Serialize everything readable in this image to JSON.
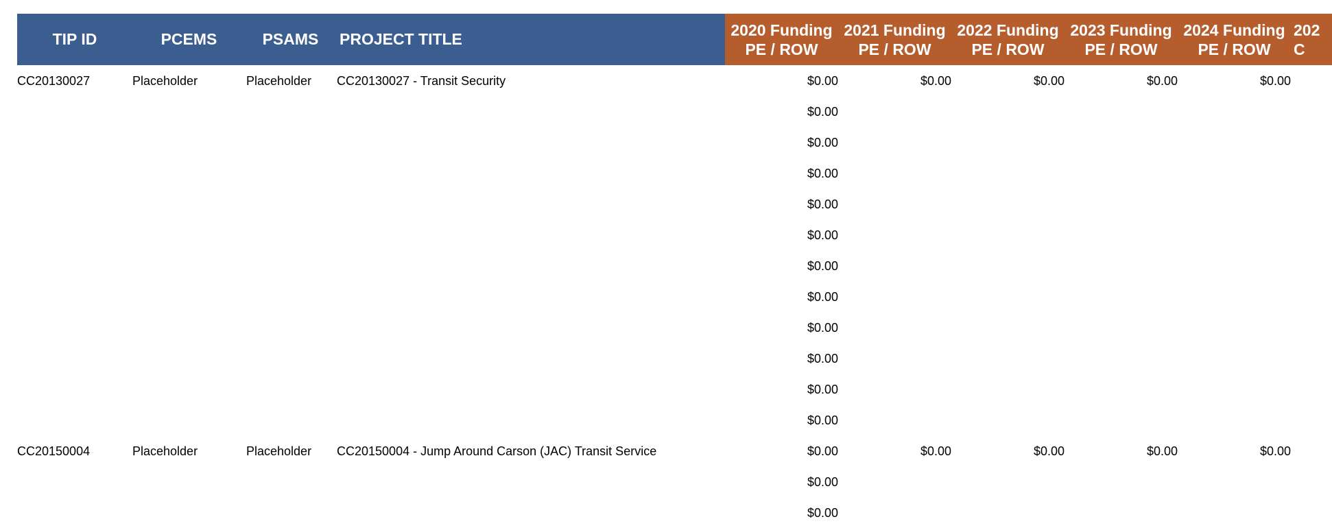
{
  "headers": {
    "tip_id": "TIP ID",
    "pcems": "PCEMS",
    "psams": "PSAMS",
    "project_title": "PROJECT TITLE",
    "years": [
      {
        "line1": "2020 Funding",
        "line2": "PE / ROW"
      },
      {
        "line1": "2021 Funding",
        "line2": "PE / ROW"
      },
      {
        "line1": "2022 Funding",
        "line2": "PE / ROW"
      },
      {
        "line1": "2023 Funding",
        "line2": "PE / ROW"
      },
      {
        "line1": "2024 Funding",
        "line2": "PE / ROW"
      },
      {
        "line1": "202",
        "line2": "C"
      }
    ]
  },
  "projects": [
    {
      "tip_id": "CC20130027",
      "pcems": "Placeholder",
      "psams": "Placeholder",
      "title": "CC20130027 - Transit Security",
      "first_row": [
        "$0.00",
        "$0.00",
        "$0.00",
        "$0.00",
        "$0.00"
      ],
      "extra_2020": [
        "$0.00",
        "$0.00",
        "$0.00",
        "$0.00",
        "$0.00",
        "$0.00",
        "$0.00",
        "$0.00",
        "$0.00",
        "$0.00",
        "$0.00"
      ]
    },
    {
      "tip_id": "CC20150004",
      "pcems": "Placeholder",
      "psams": "Placeholder",
      "title": "CC20150004 - Jump Around Carson (JAC) Transit Service",
      "first_row": [
        "$0.00",
        "$0.00",
        "$0.00",
        "$0.00",
        "$0.00"
      ],
      "extra_2020": [
        "$0.00",
        "$0.00"
      ]
    }
  ],
  "colors": {
    "header_blue": "#3c5d8f",
    "header_orange": "#b65d2e"
  }
}
